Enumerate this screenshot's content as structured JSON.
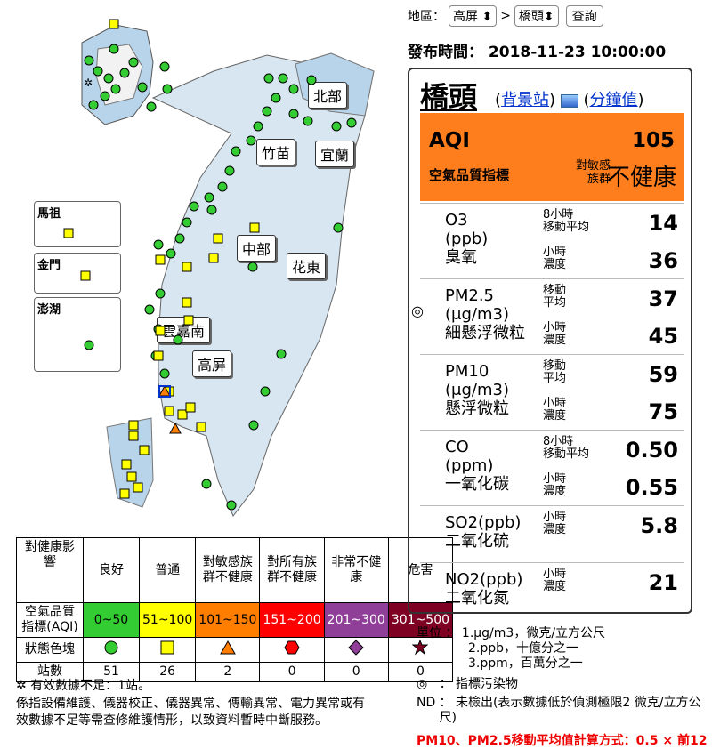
{
  "controls": {
    "region_label": "地區：",
    "county_select": "高屏",
    "station_select": "橋頭",
    "query_button": "查詢",
    "separator": ">"
  },
  "publish": {
    "label": "發布時間：",
    "time": "2018-11-23 10:00:00"
  },
  "station": {
    "name": "橋頭",
    "type_link": "背景站",
    "minute_link": "分鐘值",
    "aqi_label": "AQI",
    "aqi_value": "105",
    "aqi_sub": "空氣品質指標",
    "group_line1": "對敏感",
    "group_line2": "族群",
    "status": "不健康"
  },
  "pollutants": [
    {
      "sym": "O3",
      "unit": "(ppb)",
      "name": "臭氧",
      "r1_l1": "8小時",
      "r1_l2": "移動平均",
      "r1_val": "14",
      "r2_l1": "小時",
      "r2_l2": "濃度",
      "r2_val": "36"
    },
    {
      "sym": "PM2.5",
      "unit": "(μg/m3)",
      "name": "細懸浮微粒",
      "r1_l1": "移動",
      "r1_l2": "平均",
      "r1_val": "37",
      "r2_l1": "小時",
      "r2_l2": "濃度",
      "r2_val": "45"
    },
    {
      "sym": "PM10",
      "unit": "(μg/m3)",
      "name": "懸浮微粒",
      "r1_l1": "移動",
      "r1_l2": "平均",
      "r1_val": "59",
      "r2_l1": "小時",
      "r2_l2": "濃度",
      "r2_val": "75"
    },
    {
      "sym": "CO",
      "unit": "(ppm)",
      "name": "一氧化碳",
      "r1_l1": "8小時",
      "r1_l2": "移動平均",
      "r1_val": "0.50",
      "r2_l1": "小時",
      "r2_l2": "濃度",
      "r2_val": "0.55"
    },
    {
      "sym": "SO2(ppb)",
      "name": "二氧化硫",
      "r1_l1": "小時",
      "r1_l2": "濃度",
      "r1_val": "5.8"
    },
    {
      "sym": "NO2(ppb)",
      "name": "二氧化氮",
      "r1_l1": "小時",
      "r1_l2": "濃度",
      "r1_val": "21"
    }
  ],
  "regions": [
    "北部",
    "竹苗",
    "宜蘭",
    "中部",
    "花東",
    "雲嘉南",
    "高屏"
  ],
  "insets": [
    "馬祖",
    "金門",
    "澎湖"
  ],
  "legend": {
    "h0": "對健康影響",
    "headers": [
      "良好",
      "普通",
      "對敏感族群不健康",
      "對所有族群不健康",
      "非常不健康",
      "危害"
    ],
    "aqi_label": "空氣品質指標(AQI)",
    "ranges": [
      "0~50",
      "51~100",
      "101~150",
      "151~200",
      "201~300",
      "301~500"
    ],
    "color_label": "狀態色塊",
    "count_label": "站數",
    "counts": [
      "51",
      "26",
      "2",
      "0",
      "0",
      "0"
    ],
    "colors": [
      "#33cc33",
      "#ffff00",
      "#ff7e00",
      "#ff0000",
      "#8f3f97",
      "#7e0023"
    ]
  },
  "notes": {
    "insufficient": "有效數據不足：1站。",
    "maintenance": "係指設備維護、儀器校正、儀器異常、傳輸異常、電力異常或有效數據不足等需查修維護情形，以致資料暫時中斷服務。"
  },
  "units": {
    "label": "單位 ：",
    "u1": "1.μg/m3，微克/立方公尺",
    "u2": "2.ppb，十億分之一",
    "u3": "3.ppm，百萬分之一",
    "indicator": "：  指標污染物",
    "nd_label": "ND",
    "nd": "：  未檢出(表示數據低於偵測極限2 微克/立方公尺)",
    "formula": "PM10、PM2.5移動平均值計算方式：0.5 × 前12"
  }
}
